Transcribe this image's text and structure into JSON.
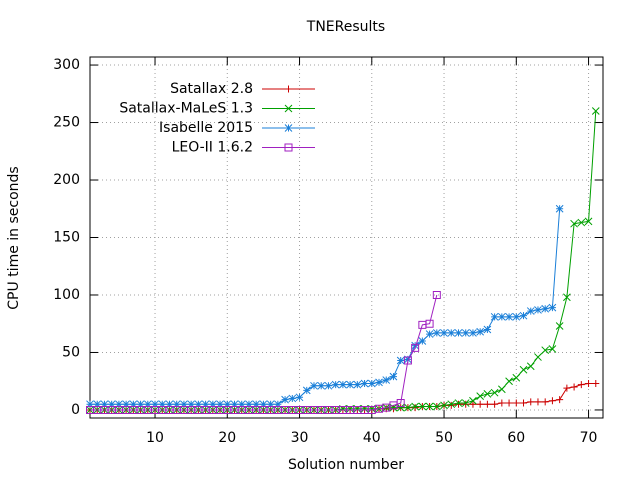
{
  "chart_data": {
    "type": "line",
    "title": "TNEResults",
    "x_label": "Solution number",
    "y_label": "CPU time in seconds",
    "x": [
      1,
      2,
      3,
      4,
      5,
      6,
      7,
      8,
      9,
      10,
      11,
      12,
      13,
      14,
      15,
      16,
      17,
      18,
      19,
      20,
      21,
      22,
      23,
      24,
      25,
      26,
      27,
      28,
      29,
      30,
      31,
      32,
      33,
      34,
      35,
      36,
      37,
      38,
      39,
      40,
      41,
      42,
      43,
      44,
      45,
      46,
      47,
      48,
      49,
      50,
      51,
      52,
      53,
      54,
      55,
      56,
      57,
      58,
      59,
      60,
      61,
      62,
      63,
      64,
      65,
      66,
      67,
      68,
      69,
      70,
      71
    ],
    "series": [
      {
        "name": "Satallax 2.8",
        "color": "#cc0000",
        "marker": "plus",
        "values": [
          0,
          0,
          0,
          0,
          0,
          0,
          0,
          0,
          0,
          0,
          0,
          0,
          0,
          0,
          0,
          0,
          0,
          0,
          0,
          0,
          0,
          0,
          0,
          0,
          0,
          0,
          0,
          0,
          0,
          0,
          0,
          0,
          0,
          0,
          0,
          0,
          0,
          0,
          0,
          0,
          1,
          1,
          1,
          2,
          2,
          2,
          3,
          3,
          3,
          4,
          4,
          5,
          5,
          5,
          5,
          5,
          5,
          6,
          6,
          6,
          6,
          7,
          7,
          7,
          8,
          9,
          19,
          20,
          22,
          23,
          23
        ]
      },
      {
        "name": "Satallax-MaLeS 1.3",
        "color": "#00a000",
        "marker": "cross",
        "values": [
          0,
          0,
          0,
          0,
          0,
          0,
          0,
          0,
          0,
          0,
          0,
          0,
          0,
          0,
          0,
          0,
          0,
          0,
          0,
          0,
          0,
          0,
          0,
          0,
          0,
          0,
          0,
          0,
          0,
          0,
          0,
          0,
          0,
          0,
          0,
          1,
          1,
          1,
          1,
          1,
          1,
          2,
          2,
          2,
          2,
          3,
          3,
          3,
          3,
          4,
          5,
          6,
          6,
          8,
          12,
          14,
          15,
          18,
          25,
          28,
          35,
          38,
          46,
          52,
          53,
          73,
          98,
          162,
          163,
          164,
          260
        ]
      },
      {
        "name": "Isabelle 2015",
        "color": "#1a7fd8",
        "marker": "star",
        "values": [
          5,
          5,
          5,
          5,
          5,
          5,
          5,
          5,
          5,
          5,
          5,
          5,
          5,
          5,
          5,
          5,
          5,
          5,
          5,
          5,
          5,
          5,
          5,
          5,
          5,
          5,
          5,
          9,
          10,
          11,
          17,
          21,
          21,
          21,
          22,
          22,
          22,
          22,
          23,
          23,
          24,
          26,
          29,
          43,
          44,
          56,
          60,
          66,
          67,
          67,
          67,
          67,
          67,
          67,
          68,
          70,
          81,
          81,
          81,
          81,
          82,
          86,
          87,
          88,
          89,
          175,
          null,
          null,
          null,
          null,
          null
        ]
      },
      {
        "name": "LEO-II 1.6.2",
        "color": "#a020c0",
        "marker": "square",
        "values": [
          0,
          0,
          0,
          0,
          0,
          0,
          0,
          0,
          0,
          0,
          0,
          0,
          0,
          0,
          0,
          0,
          0,
          0,
          0,
          0,
          0,
          0,
          0,
          0,
          0,
          0,
          0,
          0,
          0,
          0,
          0,
          0,
          0,
          0,
          0,
          0,
          0,
          0,
          0,
          0,
          1,
          2,
          4,
          6,
          43,
          54,
          74,
          75,
          100,
          null,
          null,
          null,
          null,
          null,
          null,
          null,
          null,
          null,
          null,
          null,
          null,
          null,
          null,
          null,
          null,
          null,
          null,
          null,
          null,
          null,
          null
        ]
      }
    ],
    "xlim": [
      1,
      72
    ],
    "ylim": [
      -7,
      307
    ],
    "xticks": [
      10,
      20,
      30,
      40,
      50,
      60,
      70
    ],
    "yticks": [
      0,
      50,
      100,
      150,
      200,
      250,
      300
    ],
    "grid": true,
    "legend": "top-left"
  }
}
